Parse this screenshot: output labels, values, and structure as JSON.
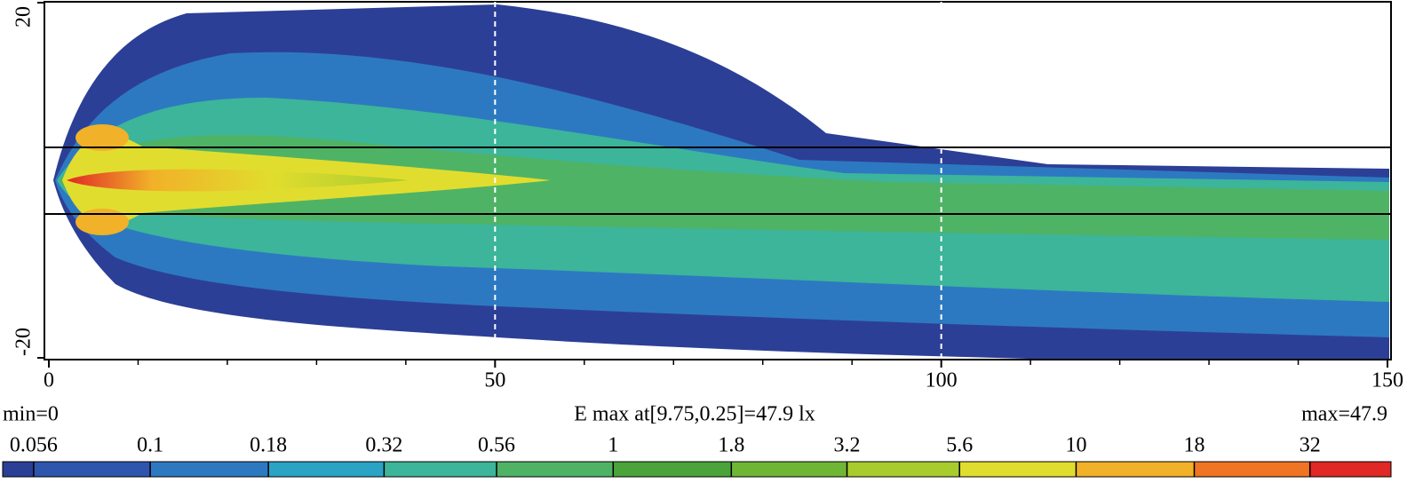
{
  "chart_data": {
    "type": "heatmap",
    "annotation": "E max at[9.75,0.25]=47.9 lx",
    "min_label": "min=0",
    "max_label": "max=47.9",
    "xlim": [
      0,
      150
    ],
    "xticks": [
      0,
      50,
      100,
      150
    ],
    "xminor_ticks": [
      10,
      20,
      30,
      40,
      60,
      70,
      80,
      90,
      110,
      120,
      130,
      140
    ],
    "ylim": [
      -20,
      20
    ],
    "yticks": [
      -20,
      20
    ],
    "grid_x": [
      50,
      100
    ],
    "colorbar": {
      "log": true,
      "lim": [
        0.048,
        47.9
      ],
      "ticks": [
        0.056,
        0.1,
        0.18,
        0.32,
        0.56,
        1,
        1.8,
        3.2,
        5.6,
        10,
        18,
        32
      ],
      "colors": [
        "#2c3f96",
        "#2e56ad",
        "#2d79c1",
        "#2aa3c5",
        "#3cb59a",
        "#4fb366",
        "#4aa43a",
        "#6fb635",
        "#a8cc2e",
        "#e1dd2e",
        "#f1b128",
        "#ef7424",
        "#e02826"
      ]
    }
  }
}
